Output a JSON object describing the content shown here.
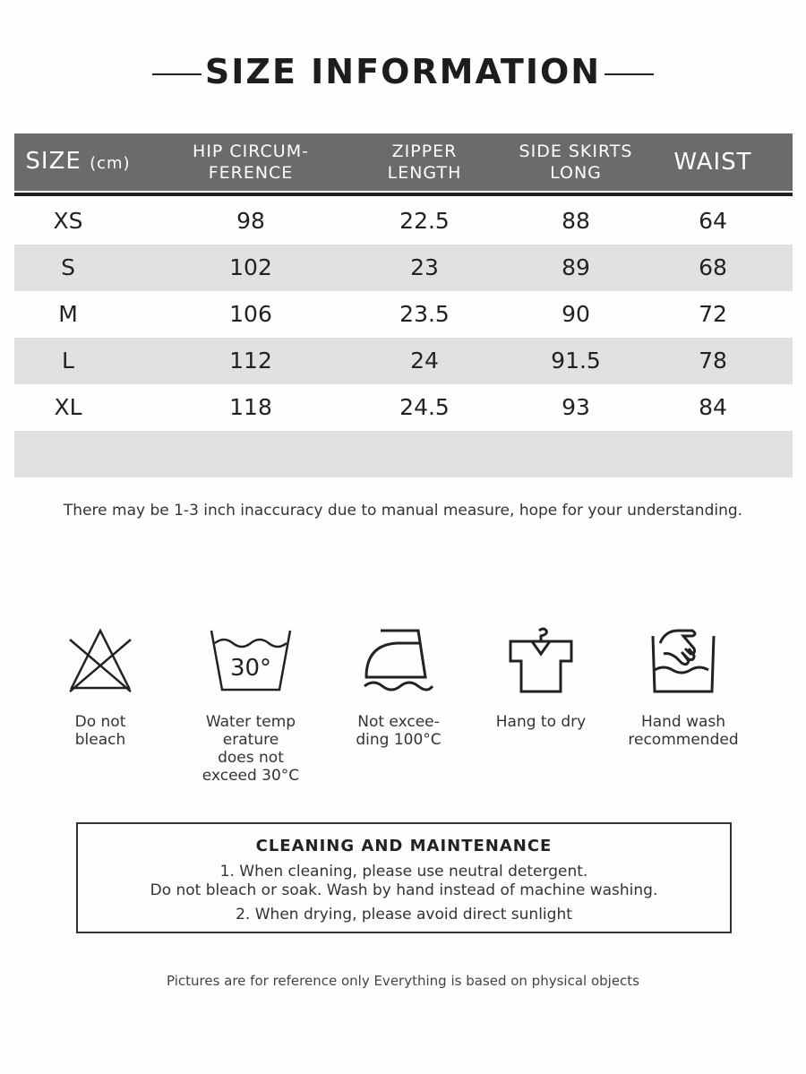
{
  "title": "SIZE INFORMATION",
  "table": {
    "headers": [
      {
        "main": "SIZE",
        "unit": "(cm)"
      },
      {
        "l1": "HIP CIRCUM-",
        "l2": "FERENCE"
      },
      {
        "l1": "ZIPPER",
        "l2": "LENGTH"
      },
      {
        "l1": "SIDE SKIRTS",
        "l2": "LONG"
      },
      {
        "main": "WAIST"
      }
    ],
    "rows": [
      [
        "XS",
        "98",
        "22.5",
        "88",
        "64"
      ],
      [
        "S",
        "102",
        "23",
        "89",
        "68"
      ],
      [
        "M",
        "106",
        "23.5",
        "90",
        "72"
      ],
      [
        "L",
        "112",
        "24",
        "91.5",
        "78"
      ],
      [
        "XL",
        "118",
        "24.5",
        "93",
        "84"
      ]
    ]
  },
  "note": "There may be 1-3 inch inaccuracy due to manual measure, hope for your understanding.",
  "care": [
    {
      "icon": "no-bleach-icon",
      "label": "Do not\nbleach"
    },
    {
      "icon": "wash-30-icon",
      "temp": "30°",
      "label": "Water temp\nerature\ndoes not\nexceed 30°C"
    },
    {
      "icon": "iron-icon",
      "label": "Not excee-\nding 100°C"
    },
    {
      "icon": "hang-dry-icon",
      "label": "Hang to dry"
    },
    {
      "icon": "hand-wash-icon",
      "label": "Hand wash\nrecommended"
    }
  ],
  "cleaning": {
    "title": "CLEANING AND MAINTENANCE",
    "line1": "1. When cleaning, please use neutral detergent.",
    "line2": "Do not bleach or soak. Wash by hand instead of machine washing.",
    "line3": "2. When drying, please avoid direct sunlight"
  },
  "footer": "Pictures are for reference only Everything is based on physical objects"
}
